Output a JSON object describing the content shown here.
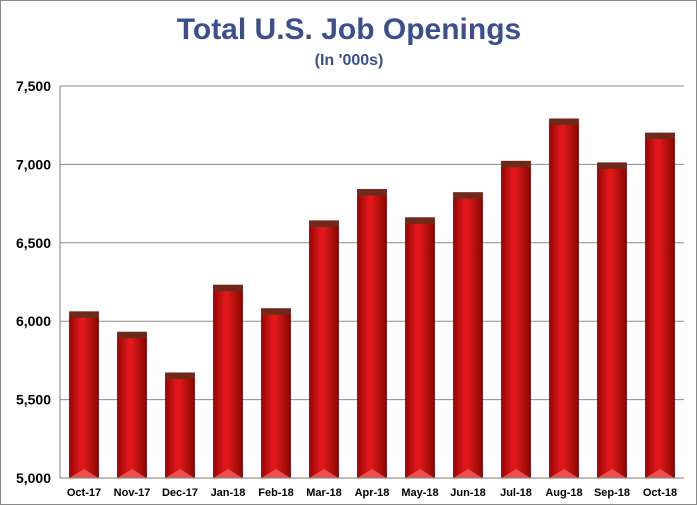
{
  "chart_data": {
    "type": "bar",
    "title": "Total U.S. Job Openings",
    "subtitle": "(In '000s)",
    "xlabel": "",
    "ylabel": "",
    "categories": [
      "Oct-17",
      "Nov-17",
      "Dec-17",
      "Jan-18",
      "Feb-18",
      "Mar-18",
      "Apr-18",
      "May-18",
      "Jun-18",
      "Jul-18",
      "Aug-18",
      "Sep-18",
      "Oct-18"
    ],
    "values": [
      6060,
      5930,
      5670,
      6230,
      6080,
      6640,
      6840,
      6660,
      6820,
      7020,
      7290,
      7010,
      7200
    ],
    "ylim": [
      5000,
      7500
    ],
    "yticks": [
      5000,
      5500,
      6000,
      6500,
      7000,
      7500
    ],
    "ytick_labels": [
      "5,000",
      "5,500",
      "6,000",
      "6,500",
      "7,000",
      "7,500"
    ],
    "grid": true,
    "legend": "none",
    "bar_color": "#d01010",
    "bar_cap_color": "#6b2a1a",
    "title_color": "#3b4f8c"
  }
}
